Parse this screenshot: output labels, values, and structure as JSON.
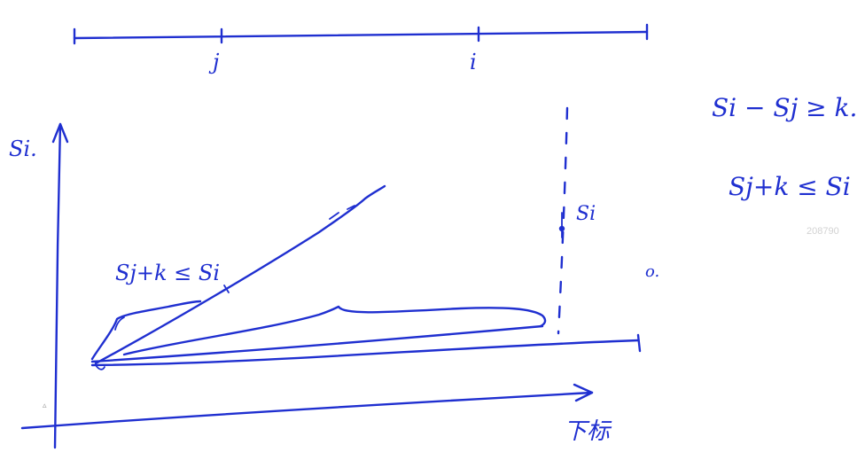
{
  "canvas": {
    "ink_color": "#1f2fd0",
    "background": "#ffffff"
  },
  "number_line": {
    "tick_j": "j",
    "tick_i": "i"
  },
  "plot": {
    "y_axis_label": "Si.",
    "x_axis_label": "下标",
    "point_label": "Si",
    "inequality_label": "Sj+k ≤ Si",
    "stray_mark": "o."
  },
  "notes": {
    "line1": "Si − Sj ≥ k.",
    "line2": "Sj+k ≤ Si"
  },
  "watermark": "208790",
  "stray_glyph": "▵"
}
